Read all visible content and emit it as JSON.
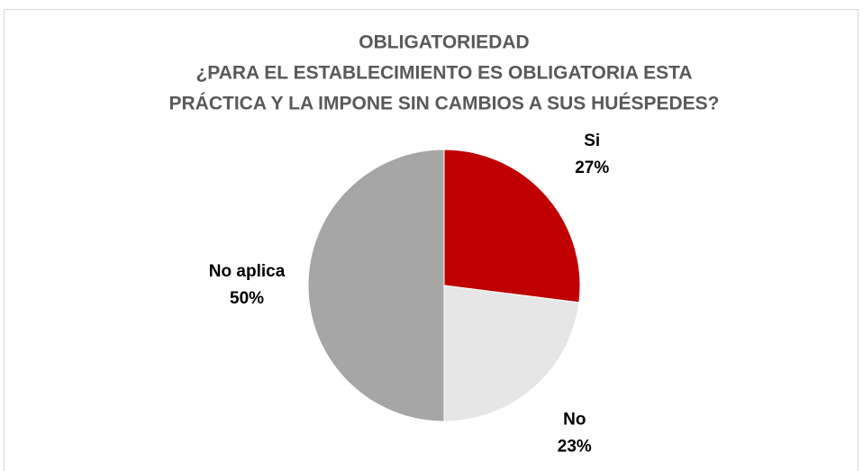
{
  "chart_data": {
    "type": "pie",
    "title": [
      "OBLIGATORIEDAD",
      "¿PARA EL ESTABLECIMIENTO ES OBLIGATORIA ESTA",
      "PRÁCTICA Y LA IMPONE SIN CAMBIOS A SUS HUÉSPEDES?"
    ],
    "categories": [
      "Si",
      "No",
      "No aplica"
    ],
    "values": [
      27,
      23,
      50
    ],
    "value_labels": [
      "27%",
      "23%",
      "50%"
    ],
    "colors": [
      "#c00000",
      "#e6e6e6",
      "#a6a6a6"
    ]
  }
}
